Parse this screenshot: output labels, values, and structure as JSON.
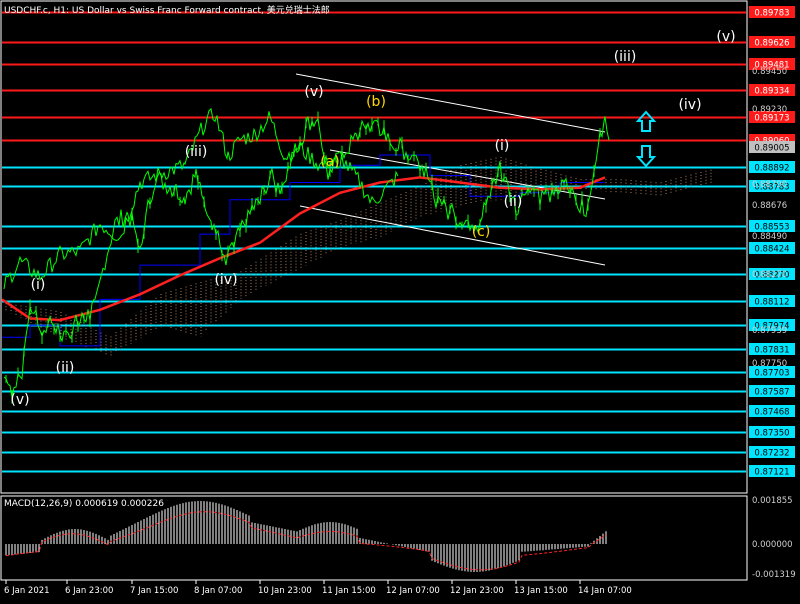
{
  "header": {
    "title": "USDCHF.c, H1:  US Dollar vs Swiss Franc Forward contract, 美元兑瑞士法郎"
  },
  "macd": {
    "label": "MACD(12,26,9) 0.000619 0.000226",
    "scale": [
      "0.001855",
      "0.000000",
      "-0.001319"
    ]
  },
  "colors": {
    "background": "#000000",
    "price_line": "#00ff00",
    "support_line": "#00e5ff",
    "resistance_line": "#ff1a1a",
    "red_ma": "#ff2020",
    "blue_line": "#0000ff",
    "white_trendline": "#ffffff",
    "wave_white": "#ffffff",
    "wave_yellow": "#ffd800",
    "arrow": "#00e5ff",
    "cloud": "#b08060",
    "macd_hist": "#ffffff",
    "macd_signal": "#ff2020"
  },
  "price_scale": {
    "ylim": [
      0.87,
      0.8985
    ],
    "ticks": [
      "0.89450",
      "0.89230",
      "0.88900",
      "0.88790",
      "0.88676",
      "0.88490",
      "0.88270",
      "0.87939",
      "0.87750"
    ],
    "tag_ticks": [
      "0.88270",
      "0.88112",
      "0.87974",
      "0.87831",
      "0.87703",
      "0.87587",
      "0.87468",
      "0.87350",
      "0.87232",
      "0.87121"
    ],
    "current_price": "0.89005"
  },
  "resistance_levels": [
    {
      "value": 0.8979,
      "label": "0.89783"
    },
    {
      "value": 0.8962,
      "label": "0.89626"
    },
    {
      "value": 0.8949,
      "label": "0.89481"
    },
    {
      "value": 0.8934,
      "label": "0.89334"
    },
    {
      "value": 0.8918,
      "label": "0.89173"
    },
    {
      "value": 0.8905,
      "label": "0.89060"
    }
  ],
  "support_levels": [
    {
      "value": 0.8889,
      "label": "0.88892"
    },
    {
      "value": 0.8878,
      "label": "0.88783"
    },
    {
      "value": 0.8855,
      "label": "0.88553"
    },
    {
      "value": 0.8842,
      "label": "0.88424"
    },
    {
      "value": 0.8827,
      "label": "0.88270"
    },
    {
      "value": 0.8811,
      "label": "0.88112"
    },
    {
      "value": 0.8797,
      "label": "0.87974"
    },
    {
      "value": 0.8783,
      "label": "0.87831"
    },
    {
      "value": 0.877,
      "label": "0.87703"
    },
    {
      "value": 0.8759,
      "label": "0.87587"
    },
    {
      "value": 0.8747,
      "label": "0.87468"
    },
    {
      "value": 0.8735,
      "label": "0.87350"
    },
    {
      "value": 0.8723,
      "label": "0.87232"
    },
    {
      "value": 0.8712,
      "label": "0.87121"
    }
  ],
  "time_axis": {
    "labels": [
      "6 Jan 2021",
      "6 Jan 23:00",
      "7 Jan 15:00",
      "8 Jan 07:00",
      "10 Jan 23:00",
      "11 Jan 15:00",
      "12 Jan 07:00",
      "12 Jan 23:00",
      "13 Jan 15:00",
      "14 Jan 07:00"
    ]
  },
  "wave_labels": [
    {
      "text": "(v)",
      "color": "white"
    },
    {
      "text": "(i)",
      "color": "white"
    },
    {
      "text": "(ii)",
      "color": "white"
    },
    {
      "text": "(iii)",
      "color": "white"
    },
    {
      "text": "(iv)",
      "color": "white"
    },
    {
      "text": "(v)",
      "color": "white"
    },
    {
      "text": "(b)",
      "color": "yellow"
    },
    {
      "text": "(a)",
      "color": "yellow"
    },
    {
      "text": "(c)",
      "color": "yellow"
    },
    {
      "text": "(i)",
      "color": "white"
    },
    {
      "text": "(ii)",
      "color": "white"
    },
    {
      "text": "(iii)",
      "color": "white"
    },
    {
      "text": "(iv)",
      "color": "white"
    },
    {
      "text": "(v)",
      "color": "white"
    }
  ]
}
